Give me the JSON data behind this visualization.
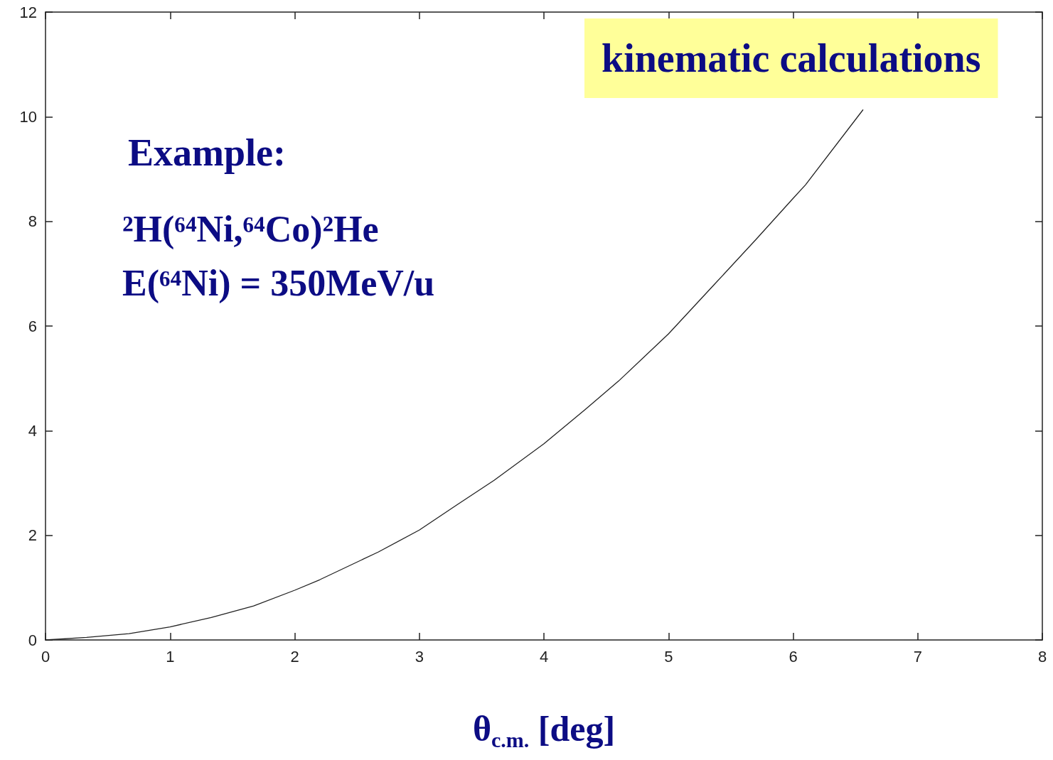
{
  "chart_data": {
    "type": "line",
    "xlabel": "θ$_{c.m.}$ [deg]",
    "annotations": [
      "kinematic calculations",
      "Example:",
      "²H(⁶⁴Ni,⁶⁴Co)²He",
      "E(⁶⁴Ni) = 350MeV/u"
    ],
    "x": [
      0,
      0.33,
      0.67,
      1,
      1.33,
      1.67,
      2,
      2.2,
      2.67,
      3,
      3.3,
      3.6,
      4,
      4.33,
      4.6,
      5,
      5.37,
      5.7,
      6,
      6.1,
      6.56
    ],
    "series": [
      {
        "color": "#222222",
        "values": [
          0,
          0.05,
          0.12,
          0.25,
          0.43,
          0.65,
          0.95,
          1.15,
          1.68,
          2.1,
          2.58,
          3.05,
          3.75,
          4.4,
          4.95,
          5.85,
          6.8,
          7.65,
          8.44,
          8.7,
          10.13
        ]
      }
    ],
    "xlim": [
      0,
      8
    ],
    "xticks": [
      0,
      1,
      2,
      3,
      4,
      5,
      6,
      7,
      8
    ],
    "ylim": [
      0,
      12
    ],
    "yticks": [
      0,
      2,
      4,
      6,
      8,
      10,
      12
    ],
    "grid": false,
    "marker": "none",
    "line_style": "solid"
  }
}
